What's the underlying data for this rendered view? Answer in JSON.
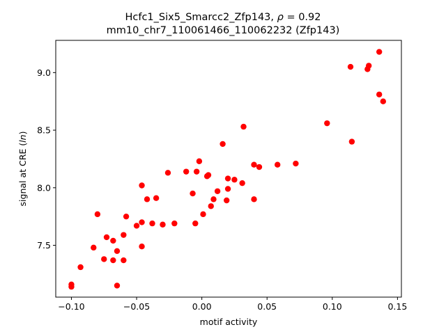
{
  "chart_data": {
    "type": "scatter",
    "title_line1": "Hcfc1_Six5_Smarcc2_Zfp143, ρ = 0.92",
    "title_line2": "mm10_chr7_110061466_110062232 (Zfp143)",
    "xlabel": "motif activity",
    "ylabel": "signal at CRE (ln)",
    "xlim": [
      -0.112,
      0.153
    ],
    "ylim": [
      7.05,
      9.28
    ],
    "xticks": [
      -0.1,
      -0.05,
      0.0,
      0.05,
      0.1,
      0.15
    ],
    "xtick_labels": [
      "−0.10",
      "−0.05",
      "0.00",
      "0.05",
      "0.10",
      "0.15"
    ],
    "yticks": [
      7.5,
      8.0,
      8.5,
      9.0
    ],
    "ytick_labels": [
      "7.5",
      "8.0",
      "8.5",
      "9.0"
    ],
    "marker_color": "#ff0000",
    "grid": false,
    "points": [
      [
        -0.1,
        7.16
      ],
      [
        -0.1,
        7.14
      ],
      [
        -0.093,
        7.31
      ],
      [
        -0.083,
        7.48
      ],
      [
        -0.08,
        7.77
      ],
      [
        -0.075,
        7.38
      ],
      [
        -0.073,
        7.57
      ],
      [
        -0.068,
        7.54
      ],
      [
        -0.068,
        7.37
      ],
      [
        -0.065,
        7.45
      ],
      [
        -0.065,
        7.15
      ],
      [
        -0.06,
        7.59
      ],
      [
        -0.06,
        7.37
      ],
      [
        -0.058,
        7.75
      ],
      [
        -0.05,
        7.67
      ],
      [
        -0.046,
        8.02
      ],
      [
        -0.046,
        7.49
      ],
      [
        -0.046,
        7.7
      ],
      [
        -0.042,
        7.9
      ],
      [
        -0.038,
        7.69
      ],
      [
        -0.035,
        7.91
      ],
      [
        -0.03,
        7.68
      ],
      [
        -0.026,
        8.13
      ],
      [
        -0.021,
        7.69
      ],
      [
        -0.012,
        8.14
      ],
      [
        -0.007,
        7.95
      ],
      [
        -0.005,
        7.69
      ],
      [
        -0.004,
        8.14
      ],
      [
        -0.002,
        8.23
      ],
      [
        0.001,
        7.77
      ],
      [
        0.004,
        8.1
      ],
      [
        0.005,
        8.11
      ],
      [
        0.007,
        7.84
      ],
      [
        0.009,
        7.9
      ],
      [
        0.012,
        7.97
      ],
      [
        0.016,
        8.38
      ],
      [
        0.019,
        7.89
      ],
      [
        0.02,
        7.99
      ],
      [
        0.02,
        8.08
      ],
      [
        0.025,
        8.07
      ],
      [
        0.031,
        8.04
      ],
      [
        0.032,
        8.53
      ],
      [
        0.04,
        8.2
      ],
      [
        0.04,
        7.9
      ],
      [
        0.044,
        8.18
      ],
      [
        0.058,
        8.2
      ],
      [
        0.072,
        8.21
      ],
      [
        0.096,
        8.56
      ],
      [
        0.114,
        9.05
      ],
      [
        0.115,
        8.4
      ],
      [
        0.127,
        9.03
      ],
      [
        0.128,
        9.06
      ],
      [
        0.136,
        9.18
      ],
      [
        0.136,
        8.81
      ],
      [
        0.139,
        8.75
      ]
    ]
  }
}
